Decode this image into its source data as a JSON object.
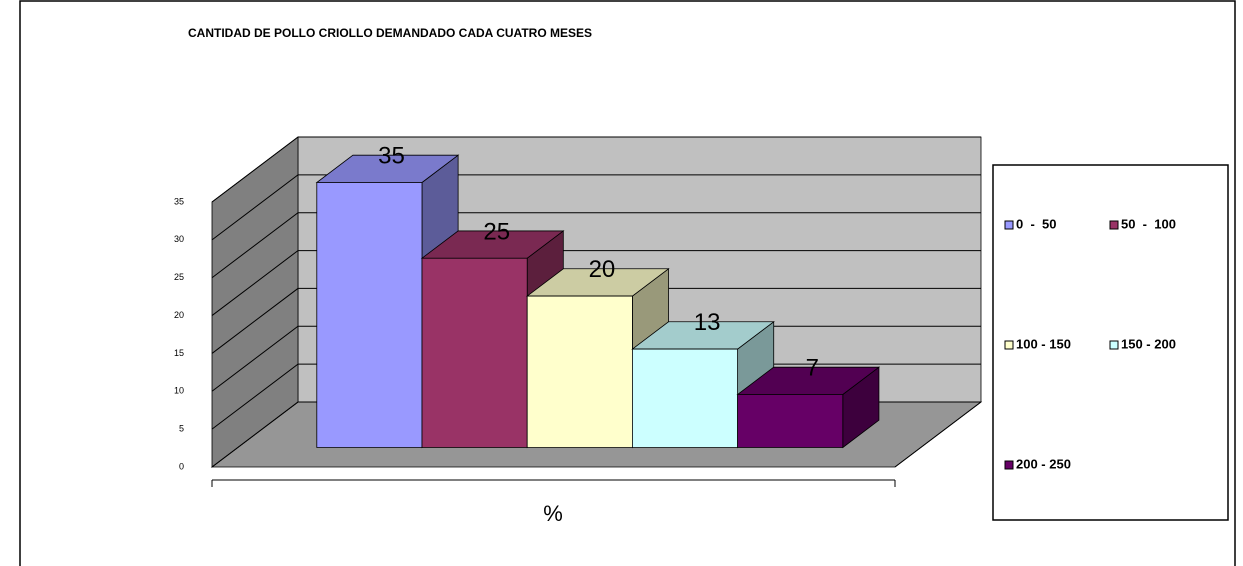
{
  "chart_data": {
    "type": "bar3d",
    "title": "CANTIDAD DE POLLO CRIOLLO DEMANDADO CADA CUATRO MESES",
    "x_label": "%",
    "series": [
      {
        "name": "0  -  50",
        "color": "#9999ff",
        "values": [
          35
        ]
      },
      {
        "name": "50  -  100",
        "color": "#993366",
        "values": [
          25
        ]
      },
      {
        "name": "100 - 150",
        "color": "#ffffcc",
        "values": [
          20
        ]
      },
      {
        "name": "150 - 200",
        "color": "#ccffff",
        "values": [
          13
        ]
      },
      {
        "name": "200 - 250",
        "color": "#660066",
        "values": [
          7
        ]
      }
    ],
    "ylim": [
      0,
      35
    ],
    "yticks": [
      0,
      5,
      10,
      15,
      20,
      25,
      30,
      35
    ],
    "grid": true,
    "legend": "right"
  }
}
